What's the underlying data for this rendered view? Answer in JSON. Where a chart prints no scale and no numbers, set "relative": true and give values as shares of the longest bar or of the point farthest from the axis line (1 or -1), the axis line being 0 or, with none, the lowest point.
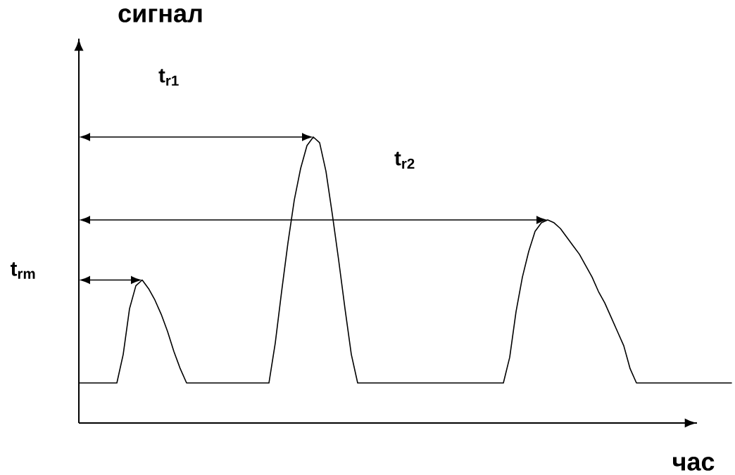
{
  "chart_data": {
    "type": "line",
    "xlabel": "час",
    "ylabel": "сигнал",
    "relative": true,
    "color": "#000000",
    "categories": [
      null,
      null,
      null,
      null,
      null,
      null,
      null,
      null,
      null,
      null,
      null,
      null,
      null,
      null,
      null,
      null,
      null,
      null,
      null,
      null,
      null,
      null,
      null,
      null,
      null,
      null,
      null,
      null,
      null,
      null,
      null,
      null,
      null,
      null,
      null,
      null,
      null,
      null,
      null,
      null,
      null,
      null,
      null,
      null,
      null,
      null,
      null,
      null,
      null,
      null,
      null,
      null,
      null,
      null,
      null,
      null,
      null,
      null,
      null,
      null,
      null,
      null,
      null,
      null,
      null,
      null,
      null,
      null,
      null,
      null,
      null,
      null,
      null,
      null,
      null,
      null,
      null,
      null,
      null,
      null,
      null,
      null,
      null,
      null,
      null,
      null,
      null,
      null,
      null,
      null,
      null,
      null,
      null,
      null,
      null,
      null,
      null,
      null,
      null,
      null,
      null,
      null,
      null,
      null
    ],
    "values": [
      0.14,
      0.14,
      0.14,
      0.14,
      0.14,
      0.14,
      0.14,
      0.24,
      0.4,
      0.48,
      0.5,
      0.47,
      0.43,
      0.38,
      0.32,
      0.25,
      0.19,
      0.14,
      0.14,
      0.14,
      0.14,
      0.14,
      0.14,
      0.14,
      0.14,
      0.14,
      0.14,
      0.14,
      0.14,
      0.14,
      0.14,
      0.28,
      0.46,
      0.63,
      0.78,
      0.89,
      0.97,
      1,
      0.98,
      0.88,
      0.73,
      0.57,
      0.4,
      0.24,
      0.14,
      0.14,
      0.14,
      0.14,
      0.14,
      0.14,
      0.14,
      0.14,
      0.14,
      0.14,
      0.14,
      0.14,
      0.14,
      0.14,
      0.14,
      0.14,
      0.14,
      0.14,
      0.14,
      0.14,
      0.14,
      0.14,
      0.14,
      0.14,
      0.23,
      0.39,
      0.51,
      0.6,
      0.67,
      0.7,
      0.71,
      0.7,
      0.68,
      0.65,
      0.62,
      0.59,
      0.55,
      0.51,
      0.46,
      0.42,
      0.37,
      0.32,
      0.27,
      0.19,
      0.14,
      0.14,
      0.14,
      0.14,
      0.14,
      0.14,
      0.14,
      0.14,
      0.14,
      0.14,
      0.14,
      0.14,
      0.14,
      0.14,
      0.14,
      0.14
    ],
    "annotations": [
      "t$_{rm}$",
      "t$_{r1}$",
      "t$_{r2}$"
    ]
  }
}
